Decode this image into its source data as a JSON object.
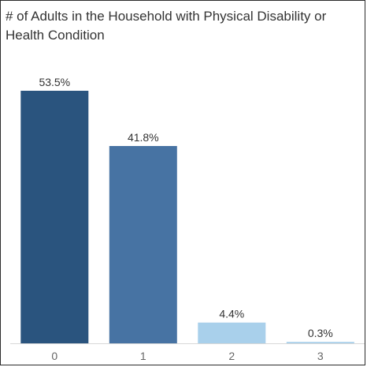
{
  "chart_data": {
    "type": "bar",
    "title": "# of Adults in the Household with Physical Disability or Health Condition",
    "xlabel": "",
    "ylabel": "",
    "categories": [
      "0",
      "1",
      "2",
      "3"
    ],
    "values": [
      53.5,
      41.8,
      4.4,
      0.3
    ],
    "data_labels": [
      "53.5%",
      "41.8%",
      "4.4%",
      "0.3%"
    ],
    "ylim": [
      0,
      60
    ],
    "grid": false,
    "legend": "none",
    "colors": [
      "#2a547e",
      "#4773a3",
      "#a9d0eb",
      "#a9d0eb"
    ],
    "axis_color": "#d9d9d9"
  }
}
